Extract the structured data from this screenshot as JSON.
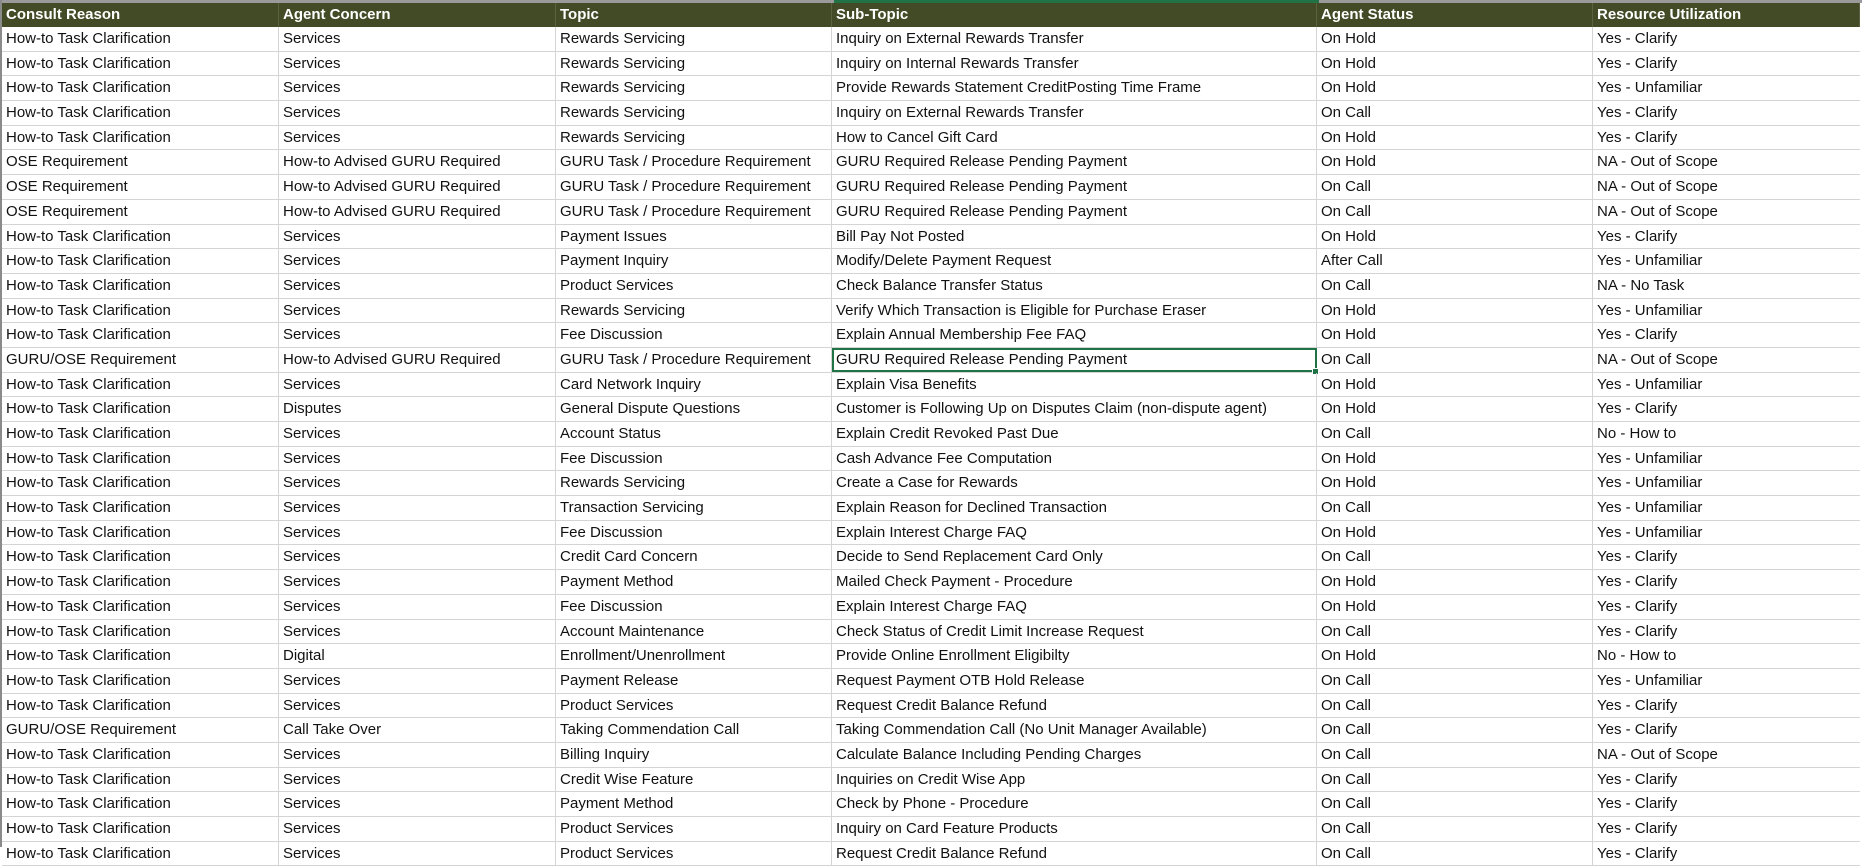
{
  "colors": {
    "header_bg": "#434a26",
    "header_text": "#ffffff",
    "selection": "#217346",
    "gridline": "#d4d4d4"
  },
  "selected_cell": {
    "row": 14,
    "column": "Sub-Topic"
  },
  "columns": [
    "Consult Reason",
    "Agent Concern",
    "Topic",
    "Sub-Topic",
    "Agent Status",
    "Resource Utilization"
  ],
  "rows": [
    [
      "How-to Task Clarification",
      "Services",
      "Rewards Servicing",
      "Inquiry on External Rewards Transfer",
      "On Hold",
      "Yes - Clarify"
    ],
    [
      "How-to Task Clarification",
      "Services",
      "Rewards Servicing",
      "Inquiry on Internal Rewards Transfer",
      "On Hold",
      "Yes - Clarify"
    ],
    [
      "How-to Task Clarification",
      "Services",
      "Rewards Servicing",
      "Provide Rewards Statement CreditPosting Time Frame",
      "On Hold",
      "Yes - Unfamiliar"
    ],
    [
      "How-to Task Clarification",
      "Services",
      "Rewards Servicing",
      "Inquiry on External Rewards Transfer",
      "On Call",
      "Yes - Clarify"
    ],
    [
      "How-to Task Clarification",
      "Services",
      "Rewards Servicing",
      "How to Cancel Gift Card",
      "On Hold",
      "Yes - Clarify"
    ],
    [
      "OSE Requirement",
      "How-to Advised GURU Required",
      "GURU Task / Procedure Requirement",
      "GURU Required Release Pending Payment",
      "On Hold",
      "NA - Out of Scope"
    ],
    [
      "OSE Requirement",
      "How-to Advised GURU Required",
      "GURU Task / Procedure Requirement",
      "GURU Required Release Pending Payment",
      "On Call",
      "NA - Out of Scope"
    ],
    [
      "OSE Requirement",
      "How-to Advised GURU Required",
      "GURU Task / Procedure Requirement",
      "GURU Required Release Pending Payment",
      "On Call",
      "NA - Out of Scope"
    ],
    [
      "How-to Task Clarification",
      "Services",
      "Payment Issues",
      "Bill Pay Not Posted",
      "On Hold",
      "Yes - Clarify"
    ],
    [
      "How-to Task Clarification",
      "Services",
      "Payment Inquiry",
      "Modify/Delete Payment Request",
      "After Call",
      "Yes - Unfamiliar"
    ],
    [
      "How-to Task Clarification",
      "Services",
      "Product Services",
      "Check Balance Transfer Status",
      "On Call",
      "NA - No Task"
    ],
    [
      "How-to Task Clarification",
      "Services",
      "Rewards Servicing",
      "Verify Which Transaction is Eligible for Purchase Eraser",
      "On Hold",
      "Yes - Unfamiliar"
    ],
    [
      "How-to Task Clarification",
      "Services",
      "Fee Discussion",
      "Explain Annual Membership Fee FAQ",
      "On Hold",
      "Yes - Clarify"
    ],
    [
      "GURU/OSE Requirement",
      "How-to Advised GURU Required",
      "GURU Task / Procedure Requirement",
      "GURU Required Release Pending Payment",
      "On Call",
      "NA - Out of Scope"
    ],
    [
      "How-to Task Clarification",
      "Services",
      "Card Network Inquiry",
      "Explain Visa Benefits",
      "On Hold",
      "Yes - Unfamiliar"
    ],
    [
      "How-to Task Clarification",
      "Disputes",
      "General Dispute Questions",
      "Customer is Following Up on Disputes Claim (non-dispute agent)",
      "On Hold",
      "Yes - Clarify"
    ],
    [
      "How-to Task Clarification",
      "Services",
      "Account Status",
      "Explain Credit Revoked Past Due",
      "On Call",
      "No - How to"
    ],
    [
      "How-to Task Clarification",
      "Services",
      "Fee Discussion",
      "Cash Advance Fee Computation",
      "On Hold",
      "Yes - Unfamiliar"
    ],
    [
      "How-to Task Clarification",
      "Services",
      "Rewards Servicing",
      "Create a Case for Rewards",
      "On Hold",
      "Yes - Unfamiliar"
    ],
    [
      "How-to Task Clarification",
      "Services",
      "Transaction Servicing",
      "Explain Reason for Declined Transaction",
      "On Call",
      "Yes - Unfamiliar"
    ],
    [
      "How-to Task Clarification",
      "Services",
      "Fee Discussion",
      "Explain Interest Charge FAQ",
      "On Hold",
      "Yes - Unfamiliar"
    ],
    [
      "How-to Task Clarification",
      "Services",
      "Credit Card Concern",
      "Decide to Send Replacement Card Only",
      "On Call",
      "Yes - Clarify"
    ],
    [
      "How-to Task Clarification",
      "Services",
      "Payment Method",
      "Mailed Check Payment - Procedure",
      "On Hold",
      "Yes - Clarify"
    ],
    [
      "How-to Task Clarification",
      "Services",
      "Fee Discussion",
      "Explain Interest Charge FAQ",
      "On Hold",
      "Yes - Clarify"
    ],
    [
      "How-to Task Clarification",
      "Services",
      "Account Maintenance",
      "Check Status of Credit Limit Increase Request",
      "On Call",
      "Yes - Clarify"
    ],
    [
      "How-to Task Clarification",
      "Digital",
      "Enrollment/Unenrollment",
      "Provide Online Enrollment Eligibilty",
      "On Hold",
      "No - How to"
    ],
    [
      "How-to Task Clarification",
      "Services",
      "Payment Release",
      "Request Payment OTB Hold Release",
      "On Call",
      "Yes - Unfamiliar"
    ],
    [
      "How-to Task Clarification",
      "Services",
      "Product Services",
      "Request Credit Balance Refund",
      "On Call",
      "Yes - Clarify"
    ],
    [
      "GURU/OSE Requirement",
      "Call Take Over",
      "Taking Commendation Call",
      "Taking Commendation Call (No Unit Manager Available)",
      "On Call",
      "Yes - Clarify"
    ],
    [
      "How-to Task Clarification",
      "Services",
      "Billing Inquiry",
      "Calculate Balance Including Pending Charges",
      "On Call",
      "NA - Out of Scope"
    ],
    [
      "How-to Task Clarification",
      "Services",
      "Credit Wise Feature",
      "Inquiries on Credit Wise App",
      "On Call",
      "Yes - Clarify"
    ],
    [
      "How-to Task Clarification",
      "Services",
      "Payment Method",
      "Check by Phone - Procedure",
      "On Call",
      "Yes - Clarify"
    ],
    [
      "How-to Task Clarification",
      "Services",
      "Product Services",
      "Inquiry on Card Feature Products",
      "On Call",
      "Yes - Clarify"
    ],
    [
      "How-to Task Clarification",
      "Services",
      "Product Services",
      "Request Credit Balance Refund",
      "On Call",
      "Yes - Clarify"
    ]
  ]
}
